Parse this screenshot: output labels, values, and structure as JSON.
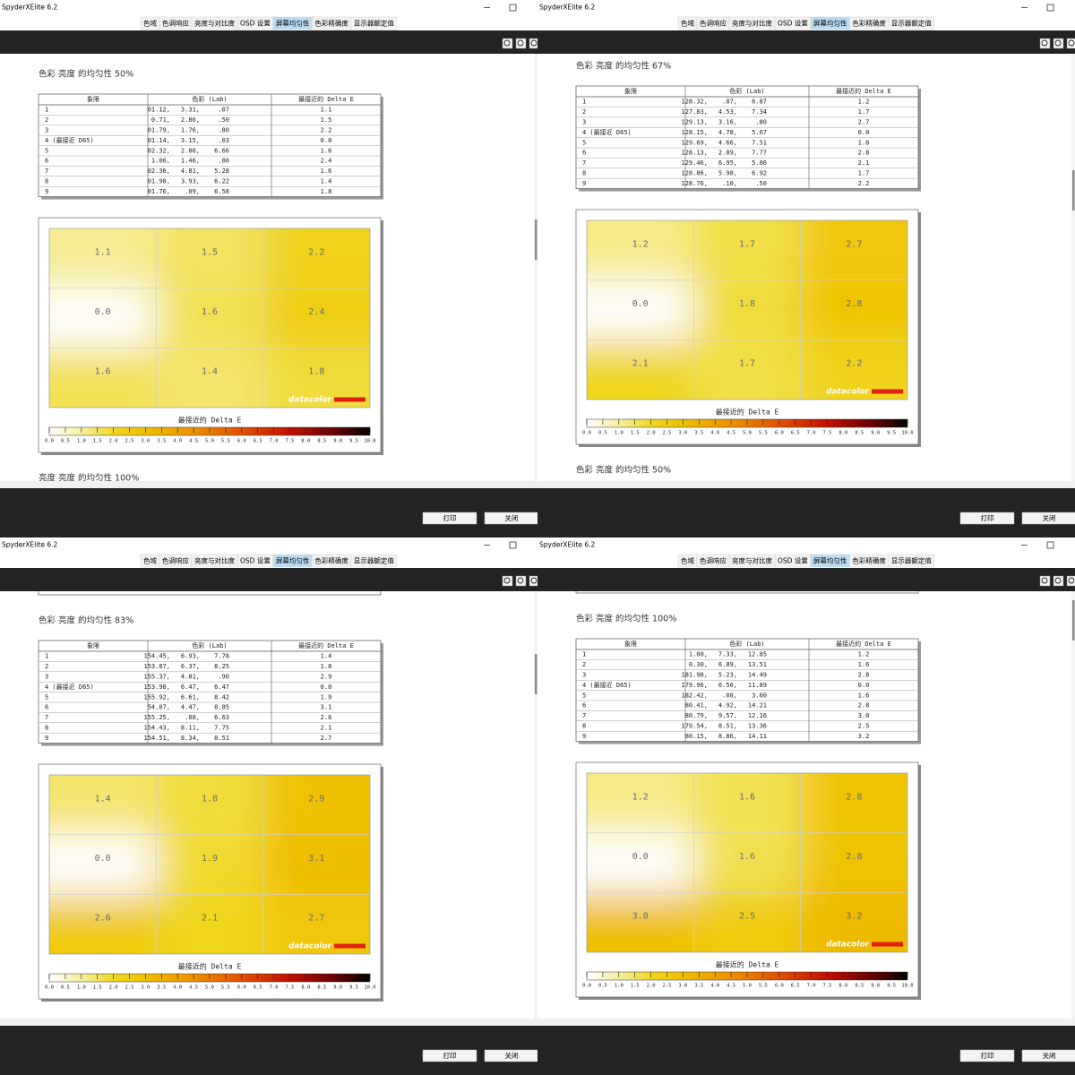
{
  "windows": [
    {
      "title": "SpyderXElite 6.2",
      "tabs": [
        "色域",
        "色调响应",
        "亮度与对比度",
        "OSD 设置",
        "屏幕均匀性",
        "色彩精确度",
        "显示器额定值"
      ],
      "active_tab": 4,
      "section_title": "色彩 亮度 的均匀性 50%",
      "table": {
        "headers": [
          "象限",
          "色彩 (Lab)",
          "最接近的 Delta E"
        ],
        "rows": [
          [
            "1",
            [
              "01.12,",
              "3.31,",
              ".07"
            ],
            "1.1"
          ],
          [
            "2",
            [
              "0.71,",
              "2.86,",
              ".50"
            ],
            "1.5"
          ],
          [
            "3",
            [
              "01.79,",
              "1.76,",
              ".80"
            ],
            "2.2"
          ],
          [
            "4 (最接近 D65)",
            [
              "01.14,",
              "3.15,",
              ".03"
            ],
            "0.0"
          ],
          [
            "5",
            [
              "02.32,",
              "2.86,",
              "6.66"
            ],
            "1.6"
          ],
          [
            "6",
            [
              "1.06,",
              "1.46,",
              ".80"
            ],
            "2.4"
          ],
          [
            "7",
            [
              "02.36,",
              "4.81,",
              "5.28"
            ],
            "1.6"
          ],
          [
            "8",
            [
              "01.98,",
              "3.93,",
              "6.22"
            ],
            "1.4"
          ],
          [
            "9",
            [
              "01.76,",
              ".09,",
              "6.58"
            ],
            "1.8"
          ]
        ]
      },
      "chart_data": {
        "type": "heatmap",
        "values": [
          1.1,
          1.5,
          2.2,
          0,
          1.6,
          2.4,
          1.6,
          1.4,
          1.8
        ],
        "value_labels": [
          "1.1",
          "1.5",
          "2.2",
          "0.0",
          "1.6",
          "2.4",
          "1.6",
          "1.4",
          "1.8"
        ],
        "logo": "datacolor",
        "colorbar_title": "最接近的 Delta E",
        "colorbar_lim": [
          0,
          10
        ],
        "colorbar_ticks": [
          {
            "value": 0,
            "label": "0.0"
          },
          0.5,
          {
            "value": 1,
            "label": "1.0"
          },
          1.5,
          {
            "value": 2,
            "label": "2.0"
          },
          2.5,
          {
            "value": 3,
            "label": "3.0"
          },
          3.5,
          {
            "value": 4,
            "label": "4.0"
          },
          4.5,
          {
            "value": 5,
            "label": "5.0"
          },
          5.5,
          {
            "value": 6,
            "label": "6.0"
          },
          6.5,
          {
            "value": 7,
            "label": "7.0"
          },
          7.5,
          {
            "value": 8,
            "label": "8.0"
          },
          8.5,
          {
            "value": 9,
            "label": "9.0"
          },
          9.5,
          {
            "value": 10,
            "label": "10.0"
          }
        ]
      },
      "next_heading": "亮度 亮度 的均匀性 100%",
      "buttons": [
        "打印",
        "关闭"
      ]
    },
    {
      "title": "SpyderXElite 6.2",
      "tabs": [
        "色域",
        "色调响应",
        "亮度与对比度",
        "OSD 设置",
        "屏幕均匀性",
        "色彩精确度",
        "显示器额定值"
      ],
      "active_tab": 4,
      "section_title": "色彩 亮度 的均匀性 67%",
      "table": {
        "headers": [
          "象限",
          "色彩 (Lab)",
          "最接近的 Delta E"
        ],
        "rows": [
          [
            "1",
            [
              "128.32,",
              ".07,",
              "6.87"
            ],
            "1.2"
          ],
          [
            "2",
            [
              "127.83,",
              "4.53,",
              "7.34"
            ],
            "1.7"
          ],
          [
            "3",
            [
              "129.13,",
              "3.16,",
              ".80"
            ],
            "2.7"
          ],
          [
            "4 (最接近 D65)",
            [
              "128.15,",
              "4.78,",
              "5.67"
            ],
            "0.0"
          ],
          [
            "5",
            [
              "129.69,",
              "4.66,",
              "7.51"
            ],
            "1.8"
          ],
          [
            "6",
            [
              "128.13,",
              "2.89,",
              "7.77"
            ],
            "2.8"
          ],
          [
            "7",
            [
              "129.46,",
              "6.95,",
              "5.86"
            ],
            "2.1"
          ],
          [
            "8",
            [
              "128.86,",
              "5.98,",
              "6.92"
            ],
            "1.7"
          ],
          [
            "9",
            [
              "128.76,",
              ".10,",
              ".50"
            ],
            "2.2"
          ]
        ]
      },
      "chart_data": {
        "type": "heatmap",
        "values": [
          1.2,
          1.7,
          2.7,
          0,
          1.8,
          2.8,
          2.1,
          1.7,
          2.2
        ],
        "value_labels": [
          "1.2",
          "1.7",
          "2.7",
          "0.0",
          "1.8",
          "2.8",
          "2.1",
          "1.7",
          "2.2"
        ],
        "logo": "datacolor",
        "colorbar_title": "最接近的 Delta E",
        "colorbar_lim": [
          0,
          10
        ],
        "colorbar_ticks": [
          {
            "value": 0,
            "label": "0.0"
          },
          0.5,
          {
            "value": 1,
            "label": "1.0"
          },
          1.5,
          {
            "value": 2,
            "label": "2.0"
          },
          2.5,
          {
            "value": 3,
            "label": "3.0"
          },
          3.5,
          {
            "value": 4,
            "label": "4.0"
          },
          4.5,
          {
            "value": 5,
            "label": "5.0"
          },
          5.5,
          {
            "value": 6,
            "label": "6.0"
          },
          6.5,
          {
            "value": 7,
            "label": "7.0"
          },
          7.5,
          {
            "value": 8,
            "label": "8.0"
          },
          8.5,
          {
            "value": 9,
            "label": "9.0"
          },
          9.5,
          {
            "value": 10,
            "label": "10.0"
          }
        ]
      },
      "next_heading": "色彩 亮度 的均匀性 50%",
      "buttons": [
        "打印",
        "关闭"
      ]
    },
    {
      "title": "SpyderXElite 6.2",
      "tabs": [
        "色域",
        "色调响应",
        "亮度与对比度",
        "OSD 设置",
        "屏幕均匀性",
        "色彩精确度",
        "显示器额定值"
      ],
      "active_tab": 4,
      "section_title": "色彩 亮度 的均匀性 83%",
      "table": {
        "headers": [
          "象限",
          "色彩 (Lab)",
          "最接近的 Delta E"
        ],
        "rows": [
          [
            "1",
            [
              "154.45,",
              "6.93,",
              "7.78"
            ],
            "1.4"
          ],
          [
            "2",
            [
              "153.87,",
              "6.37,",
              "8.25"
            ],
            "1.8"
          ],
          [
            "3",
            [
              "155.37,",
              "4.81,",
              ".90"
            ],
            "2.9"
          ],
          [
            "4 (最接近 D65)",
            [
              "153.98,",
              "6.47,",
              "6.47"
            ],
            "0.0"
          ],
          [
            "5",
            [
              "155.92,",
              "6.61,",
              "8.42"
            ],
            "1.9"
          ],
          [
            "6",
            [
              "54.07,",
              "4.47,",
              "8.85"
            ],
            "3.1"
          ],
          [
            "7",
            [
              "155.25,",
              ".08,",
              "6.63"
            ],
            "2.6"
          ],
          [
            "8",
            [
              "154.43,",
              "8.11,",
              "7.75"
            ],
            "2.1"
          ],
          [
            "9",
            [
              "154.51,",
              "8.34,",
              "8.51"
            ],
            "2.7"
          ]
        ]
      },
      "chart_data": {
        "type": "heatmap",
        "values": [
          1.4,
          1.8,
          2.9,
          0,
          1.9,
          3.1,
          2.6,
          2.1,
          2.7
        ],
        "value_labels": [
          "1.4",
          "1.8",
          "2.9",
          "0.0",
          "1.9",
          "3.1",
          "2.6",
          "2.1",
          "2.7"
        ],
        "logo": "datacolor",
        "colorbar_title": "最接近的 Delta E",
        "colorbar_lim": [
          0,
          10
        ],
        "colorbar_ticks": [
          {
            "value": 0,
            "label": "0.0"
          },
          0.5,
          {
            "value": 1,
            "label": "1.0"
          },
          1.5,
          {
            "value": 2,
            "label": "2.0"
          },
          2.5,
          {
            "value": 3,
            "label": "3.0"
          },
          3.5,
          {
            "value": 4,
            "label": "4.0"
          },
          4.5,
          {
            "value": 5,
            "label": "5.0"
          },
          5.5,
          {
            "value": 6,
            "label": "6.0"
          },
          6.5,
          {
            "value": 7,
            "label": "7.0"
          },
          7.5,
          {
            "value": 8,
            "label": "8.0"
          },
          8.5,
          {
            "value": 9,
            "label": "9.0"
          },
          9.5,
          {
            "value": 10,
            "label": "10.0"
          }
        ]
      },
      "buttons": [
        "打印",
        "关闭"
      ]
    },
    {
      "title": "SpyderXElite 6.2",
      "tabs": [
        "色域",
        "色调响应",
        "亮度与对比度",
        "OSD 设置",
        "屏幕均匀性",
        "色彩精确度",
        "显示器额定值"
      ],
      "active_tab": 4,
      "section_title": "色彩 亮度 的均匀性 100%",
      "table": {
        "headers": [
          "象限",
          "色彩 (Lab)",
          "最接近的 Delta E"
        ],
        "rows": [
          [
            "1",
            [
              "1.00,",
              "7.33,",
              "12.85"
            ],
            "1.2"
          ],
          [
            "2",
            [
              "0.30,",
              "6.89,",
              "13.51"
            ],
            "1.6"
          ],
          [
            "3",
            [
              "181.98,",
              "5.23,",
              "14.49"
            ],
            "2.8"
          ],
          [
            "4 (最接近 D65)",
            [
              "179.96,",
              "6.56,",
              "11.89"
            ],
            "0.0"
          ],
          [
            "5",
            [
              "182.42,",
              ".08,",
              "3.60"
            ],
            "1.6"
          ],
          [
            "6",
            [
              "80.41,",
              "4.92,",
              "14.21"
            ],
            "2.8"
          ],
          [
            "7",
            [
              "80.79,",
              "9.57,",
              "12.16"
            ],
            "3.0"
          ],
          [
            "8",
            [
              "179.54,",
              "8.51,",
              "13.36"
            ],
            "2.5"
          ],
          [
            "9",
            [
              "80.15,",
              "8.86,",
              "14.11"
            ],
            "3.2"
          ]
        ]
      },
      "chart_data": {
        "type": "heatmap",
        "values": [
          1.2,
          1.6,
          2.8,
          0,
          1.6,
          2.8,
          3,
          2.5,
          3.2
        ],
        "value_labels": [
          "1.2",
          "1.6",
          "2.8",
          "0.0",
          "1.6",
          "2.8",
          "3.0",
          "2.5",
          "3.2"
        ],
        "logo": "datacolor",
        "colorbar_title": "最接近的 Delta E",
        "colorbar_lim": [
          0,
          10
        ],
        "colorbar_ticks": [
          {
            "value": 0,
            "label": "0.0"
          },
          0.5,
          {
            "value": 1,
            "label": "1.0"
          },
          1.5,
          {
            "value": 2,
            "label": "2.0"
          },
          2.5,
          {
            "value": 3,
            "label": "3.0"
          },
          3.5,
          {
            "value": 4,
            "label": "4.0"
          },
          4.5,
          {
            "value": 5,
            "label": "5.0"
          },
          5.5,
          {
            "value": 6,
            "label": "6.0"
          },
          6.5,
          {
            "value": 7,
            "label": "7.0"
          },
          7.5,
          {
            "value": 8,
            "label": "8.0"
          },
          8.5,
          {
            "value": 9,
            "label": "9.0"
          },
          9.5,
          {
            "value": 10,
            "label": "10.0"
          }
        ]
      },
      "buttons": [
        "打印",
        "关闭"
      ]
    }
  ]
}
